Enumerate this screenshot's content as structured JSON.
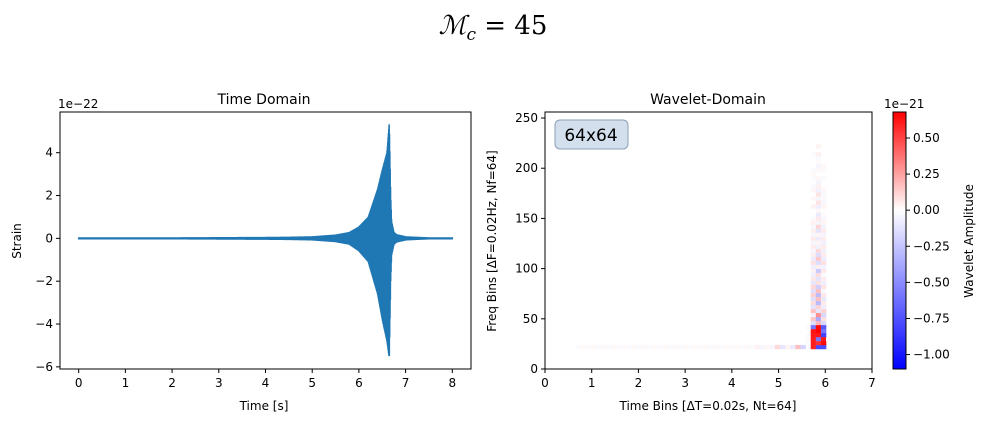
{
  "suptitle": {
    "symbol": "ℳ",
    "subscript": "c",
    "rest": " = 45"
  },
  "chart_data": [
    {
      "type": "line",
      "title": "Time Domain",
      "xlabel": "Time [s]",
      "ylabel": "Strain",
      "offset_text": "1e−22",
      "xlim": [
        -0.4,
        8.4
      ],
      "ylim": [
        -6.1,
        5.9
      ],
      "xticks": [
        0,
        1,
        2,
        3,
        4,
        5,
        6,
        7,
        8
      ],
      "yticks": [
        -6,
        -4,
        -2,
        0,
        2,
        4
      ],
      "ytick_labels": [
        "−6",
        "−4",
        "−2",
        "0",
        "2",
        "4"
      ],
      "color": "#1f77b4",
      "series": [
        {
          "description_points": "strain envelope (×1e-22) vs time",
          "t": [
            0.0,
            1.0,
            2.0,
            3.0,
            4.0,
            4.5,
            5.0,
            5.5,
            5.8,
            6.0,
            6.2,
            6.4,
            6.5,
            6.6,
            6.65,
            6.68,
            6.7,
            6.75,
            6.8,
            7.0,
            7.5,
            8.0
          ],
          "upper": [
            0.05,
            0.05,
            0.05,
            0.06,
            0.07,
            0.08,
            0.1,
            0.18,
            0.3,
            0.55,
            1.0,
            2.3,
            3.2,
            4.0,
            5.4,
            2.0,
            0.8,
            0.3,
            0.2,
            0.1,
            0.05,
            0.05
          ],
          "lower": [
            -0.05,
            -0.05,
            -0.05,
            -0.06,
            -0.07,
            -0.08,
            -0.1,
            -0.18,
            -0.3,
            -0.6,
            -1.1,
            -2.6,
            -3.8,
            -4.8,
            -5.6,
            -2.0,
            -0.8,
            -0.3,
            -0.2,
            -0.1,
            -0.05,
            -0.05
          ]
        }
      ]
    },
    {
      "type": "heatmap",
      "title": "Wavelet-Domain",
      "xlabel": "Time Bins [ΔT=0.02s, Nt=64]",
      "ylabel": "Freq Bins [ΔF=0.02Hz, Nf=64]",
      "annotation": "64x64",
      "xlim": [
        0,
        7
      ],
      "ylim": [
        0,
        256
      ],
      "xticks": [
        0,
        1,
        2,
        3,
        4,
        5,
        6,
        7
      ],
      "yticks": [
        0,
        50,
        100,
        150,
        200,
        250
      ],
      "colorbar": {
        "label": "Wavelet Amplitude",
        "offset_text": "1e−21",
        "range": [
          -1.1,
          0.68
        ],
        "ticks": [
          -1.0,
          -0.75,
          -0.5,
          -0.25,
          0.0,
          0.25,
          0.5
        ],
        "tick_labels": [
          "−1.00",
          "−0.75",
          "−0.50",
          "−0.25",
          "0.00",
          "0.25",
          "0.50"
        ],
        "cmap": "bwr"
      },
      "dominant_features": {
        "chirp_time_bin_center": 5.85,
        "low_freq_band_y": 22,
        "peak_positive": 0.68,
        "peak_negative": -1.1
      }
    }
  ]
}
